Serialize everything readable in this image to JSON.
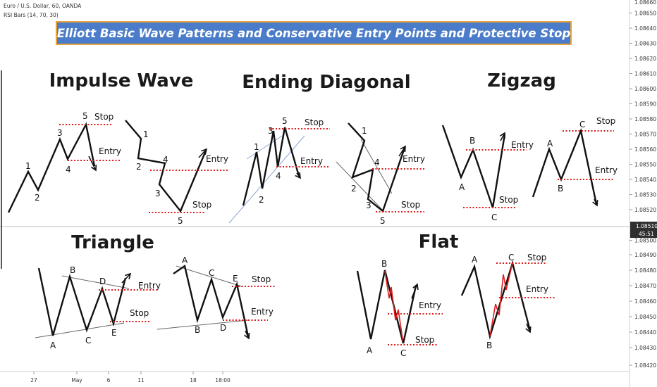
{
  "header": {
    "symbol": "Euro / U.S. Dollar, 60, OANDA",
    "indicator": "RSI Bars (14, 70, 30)"
  },
  "banner": {
    "text": "Elliott Basic Wave Patterns and Conservative Entry Points and Protective Stop",
    "bg": "#4a7cc9",
    "border": "#e9a33a",
    "color": "#ffffff"
  },
  "colors": {
    "wave": "#111111",
    "level": "#e01b1b",
    "trend": "#8fa6d6",
    "subwave": "#e01b1b"
  },
  "price_axis": {
    "ticks": [
      "1.08650",
      "1.08640",
      "1.08630",
      "1.08620",
      "1.08610",
      "1.08600",
      "1.08590",
      "1.08580",
      "1.08570",
      "1.08560",
      "1.08550",
      "1.08540",
      "1.08530",
      "1.08520",
      "1.08500",
      "1.08490",
      "1.08480",
      "1.08470",
      "1.08460",
      "1.08450",
      "1.08440",
      "1.08430",
      "1.08420"
    ],
    "top_partial": "1.08660",
    "current_price": "1.08510",
    "countdown": "45:51"
  },
  "time_axis": {
    "ticks": [
      "27",
      "May",
      "6",
      "11",
      "18",
      "18:00"
    ]
  },
  "chart_data": {
    "type": "line",
    "title": "Elliott Basic Wave Patterns and Conservative Entry Points and Protective Stop",
    "patterns": [
      {
        "name": "Impulse Wave",
        "variants": [
          "bullish",
          "bearish"
        ],
        "bullish": {
          "labels": [
            "1",
            "2",
            "3",
            "4",
            "5"
          ],
          "levels": [
            "Stop",
            "Entry"
          ]
        },
        "bearish": {
          "labels": [
            "1",
            "2",
            "3",
            "4",
            "5"
          ],
          "levels": [
            "Entry",
            "Stop"
          ]
        }
      },
      {
        "name": "Ending Diagonal",
        "variants": [
          "bullish",
          "bearish"
        ],
        "bullish": {
          "labels": [
            "1",
            "2",
            "3",
            "4",
            "5"
          ],
          "levels": [
            "Stop",
            "Entry"
          ]
        },
        "bearish": {
          "labels": [
            "1",
            "2",
            "3",
            "4",
            "5"
          ],
          "levels": [
            "Entry",
            "Stop"
          ]
        }
      },
      {
        "name": "Zigzag",
        "variants": [
          "bearish",
          "bullish"
        ],
        "bearish": {
          "labels": [
            "A",
            "B",
            "C"
          ],
          "levels": [
            "Entry",
            "Stop"
          ]
        },
        "bullish": {
          "labels": [
            "A",
            "B",
            "C"
          ],
          "levels": [
            "Stop",
            "Entry"
          ]
        }
      },
      {
        "name": "Triangle",
        "variants": [
          "bearish",
          "bullish"
        ],
        "bearish": {
          "labels": [
            "A",
            "B",
            "C",
            "D",
            "E"
          ],
          "levels": [
            "Entry",
            "Stop"
          ]
        },
        "bullish": {
          "labels": [
            "A",
            "B",
            "C",
            "D",
            "E"
          ],
          "levels": [
            "Stop",
            "Entry"
          ]
        }
      },
      {
        "name": "Flat",
        "variants": [
          "bearish",
          "bullish"
        ],
        "bearish": {
          "labels": [
            "A",
            "B",
            "C"
          ],
          "levels": [
            "Entry",
            "Stop"
          ]
        },
        "bullish": {
          "labels": [
            "A",
            "B",
            "C"
          ],
          "levels": [
            "Stop",
            "Entry"
          ]
        }
      }
    ]
  }
}
